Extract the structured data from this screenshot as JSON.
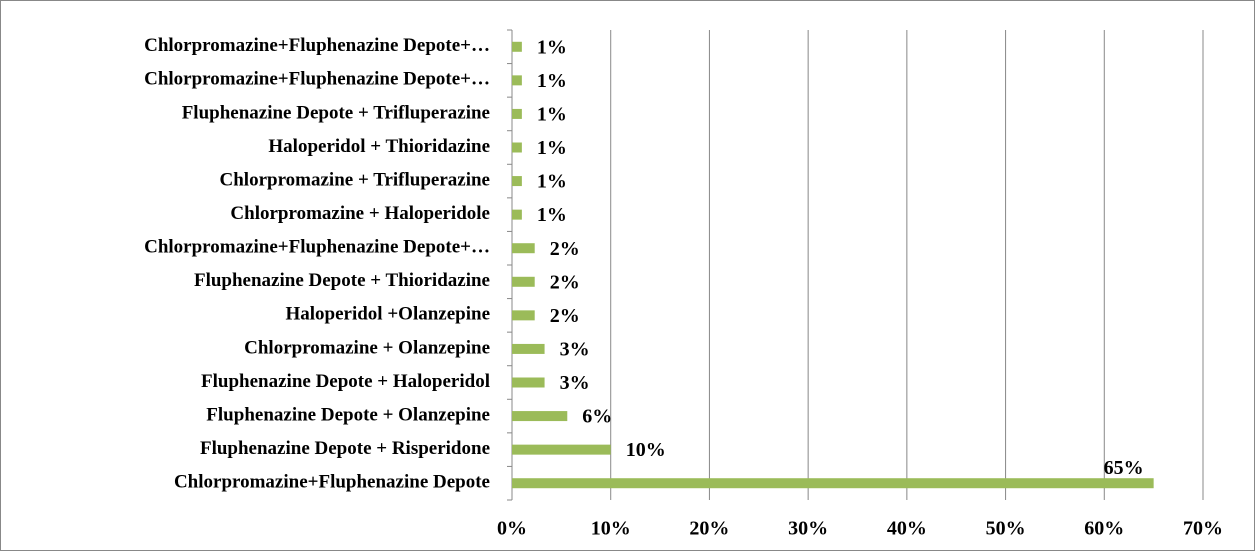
{
  "chart_data": {
    "type": "barh",
    "categories": [
      "Chlorpromazine+Fluphenazine Depote+…",
      "Chlorpromazine+Fluphenazine Depote+…",
      "Fluphenazine Depote + Trifluperazine",
      "Haloperidol + Thioridazine",
      "Chlorpromazine + Trifluperazine",
      "Chlorpromazine + Haloperidole",
      "Chlorpromazine+Fluphenazine Depote+…",
      "Fluphenazine Depote + Thioridazine",
      "Haloperidol +Olanzepine",
      "Chlorpromazine + Olanzepine",
      "Fluphenazine Depote + Haloperidol",
      "Fluphenazine Depote + Olanzepine",
      "Fluphenazine Depote + Risperidone",
      "Chlorpromazine+Fluphenazine Depote"
    ],
    "values": [
      1,
      1,
      1,
      1,
      1,
      1,
      2.3,
      2.3,
      2.3,
      3.3,
      3.3,
      5.6,
      10,
      65
    ],
    "value_labels": [
      "1%",
      "1%",
      "1%",
      "1%",
      "1%",
      "1%",
      "2%",
      "2%",
      "2%",
      "3%",
      "3%",
      "6%",
      "10%",
      "65%"
    ],
    "color": "#9bbb59",
    "xlim": [
      0,
      70
    ],
    "xticks": [
      {
        "value": 0,
        "label": "0%"
      },
      {
        "value": 10,
        "label": "10%"
      },
      {
        "value": 20,
        "label": "20%"
      },
      {
        "value": 30,
        "label": "30%"
      },
      {
        "value": 40,
        "label": "40%"
      },
      {
        "value": 50,
        "label": "50%"
      },
      {
        "value": 60,
        "label": "60%"
      },
      {
        "value": 70,
        "label": "70%"
      }
    ],
    "grid": true
  }
}
